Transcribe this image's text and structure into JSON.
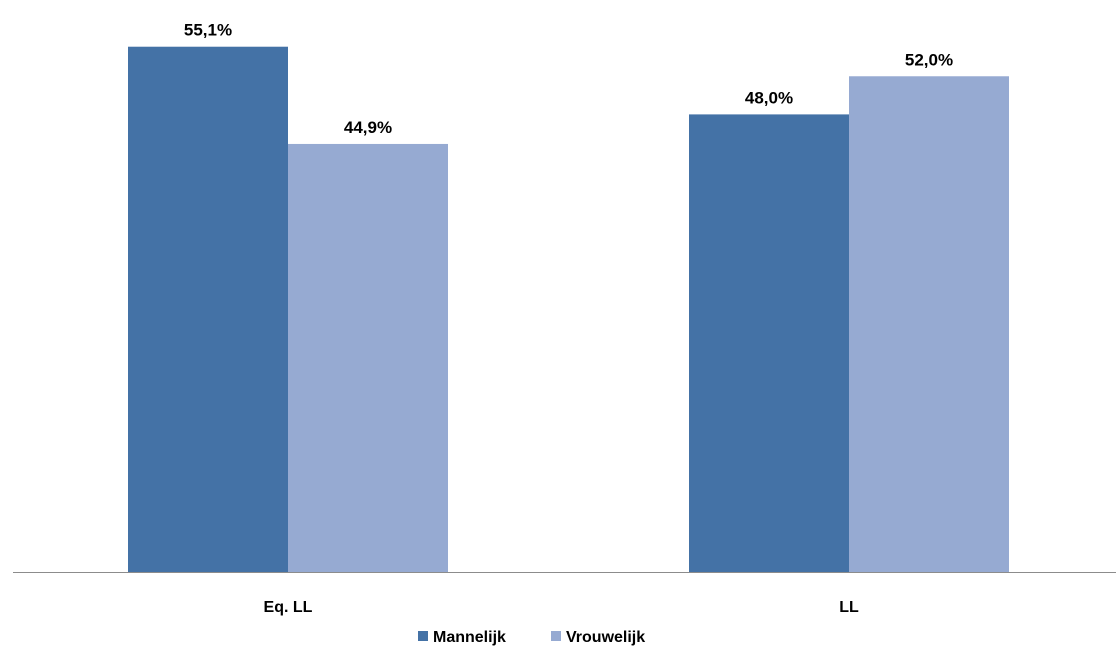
{
  "chart_data": {
    "type": "bar",
    "categories": [
      "Eq. LL",
      "LL"
    ],
    "series": [
      {
        "name": "Mannelijk",
        "values": [
          55.1,
          48.0
        ],
        "labels": [
          "55,1%",
          "48,0%"
        ],
        "color": "#4472a6"
      },
      {
        "name": "Vrouwelijk",
        "values": [
          44.9,
          52.0
        ],
        "labels": [
          "44,9%",
          "52,0%"
        ],
        "color": "#96aad2"
      }
    ],
    "ylim": [
      0,
      60
    ],
    "grid": false,
    "legend_position": "bottom",
    "axis_color": "#8c8c8c"
  }
}
